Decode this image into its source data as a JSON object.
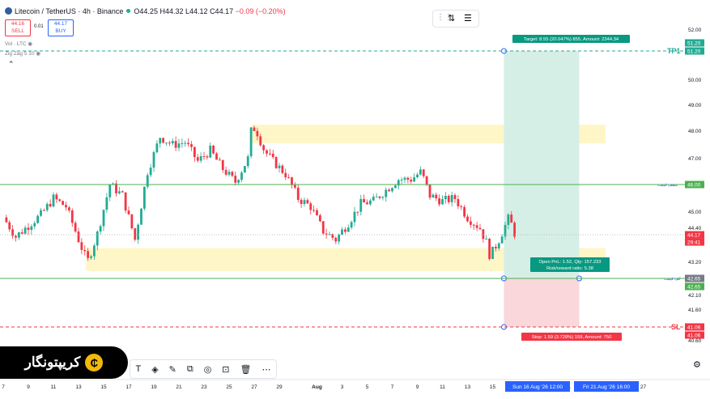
{
  "header": {
    "symbol": "Litecoin / TetherUS · 4h · Binance",
    "open": "O44.25",
    "high": "H44.32",
    "low": "L44.12",
    "close": "C44.17",
    "change": "−0.09 (−0.20%)"
  },
  "trade": {
    "sell_price": "44.16",
    "sell_label": "SELL",
    "spread": "0.01",
    "buy_price": "44.17",
    "buy_label": "BUY"
  },
  "indicators": {
    "vol": "Vol · LTC",
    "zigzag": "Zig Zag 5 10"
  },
  "logo": {
    "text": "کریپتونگار",
    "symbol": "₵"
  },
  "position": {
    "target_label": "Target: 8.55 (20.047%) 855, Amount: 2344.34",
    "open_label_1": "Open PnL: 1.52, Qty: 157.233",
    "open_label_2": "Risk/reward ratio: 5.38",
    "stop_label": "Stop: 1.59 (3.728%) 159, Amount: 750"
  },
  "line_labels": {
    "tp1": "TP1",
    "sl": "SL",
    "resist": "سقف قیمت",
    "support": "کف قیمت"
  },
  "colors": {
    "up": "#22ab94",
    "down": "#f23645",
    "green_line": "#4caf50",
    "target_fill": "#d6efe6",
    "stop_fill": "#f9d7da",
    "zone": "#fff6c8"
  },
  "chart_data": {
    "type": "candlestick",
    "title": "Litecoin / TetherUS · 4h · Binance",
    "y_ticks": [
      52.0,
      51.2,
      50.0,
      49.0,
      48.0,
      47.0,
      46.0,
      45.0,
      44.4,
      43.2,
      42.65,
      42.1,
      41.6,
      41.06,
      40.6
    ],
    "y_tick_labels": [
      "52.00",
      "51.20",
      "50.00",
      "49.00",
      "48.00",
      "47.00",
      "46.00",
      "45.00",
      "44.40",
      "43.20",
      "42.65",
      "42.10",
      "41.60",
      "41.06",
      "40.60"
    ],
    "x_ticks": [
      {
        "label": "7",
        "day": 0
      },
      {
        "label": "9",
        "day": 2
      },
      {
        "label": "11",
        "day": 4
      },
      {
        "label": "13",
        "day": 6
      },
      {
        "label": "15",
        "day": 8
      },
      {
        "label": "17",
        "day": 10
      },
      {
        "label": "19",
        "day": 12
      },
      {
        "label": "21",
        "day": 14
      },
      {
        "label": "23",
        "day": 16
      },
      {
        "label": "25",
        "day": 18
      },
      {
        "label": "27",
        "day": 20
      },
      {
        "label": "29",
        "day": 22
      },
      {
        "label": "Aug",
        "day": 25
      },
      {
        "label": "3",
        "day": 27
      },
      {
        "label": "5",
        "day": 29
      },
      {
        "label": "7",
        "day": 31
      },
      {
        "label": "9",
        "day": 33
      },
      {
        "label": "11",
        "day": 35
      },
      {
        "label": "13",
        "day": 37
      },
      {
        "label": "15",
        "day": 39
      },
      {
        "label": "17",
        "day": 41
      },
      {
        "label": "19",
        "day": 43
      },
      {
        "label": "21",
        "day": 45
      },
      {
        "label": "23",
        "day": 47
      },
      {
        "label": "25",
        "day": 49
      },
      {
        "label": "27",
        "day": 51
      }
    ],
    "x_highlight": [
      "Sun 16 Aug '26   12:00",
      "Fri 21 Aug '26   16:00"
    ],
    "price_labels": {
      "tp1": "51.20",
      "resist": "46.00",
      "last": "44.17",
      "countdown": "29:41",
      "support": "42.65",
      "sl": "41.06"
    },
    "levels": {
      "tp1": 51.2,
      "resistance": 46.0,
      "support": 42.65,
      "sl": 41.06,
      "last": 44.17
    },
    "zones": [
      {
        "from_day": 19.8,
        "to_day": 48,
        "low": 47.55,
        "high": 48.25
      },
      {
        "from_day": 6.6,
        "to_day": 48,
        "low": 42.9,
        "high": 43.7
      }
    ],
    "position_days": [
      39.9,
      45.9
    ],
    "path": [
      [
        0,
        44.8
      ],
      [
        1,
        44.1
      ],
      [
        2,
        44.5
      ],
      [
        3,
        44.9
      ],
      [
        4,
        45.5
      ],
      [
        5,
        45.2
      ],
      [
        6,
        44.0
      ],
      [
        6.7,
        43.2
      ],
      [
        7.5,
        44.2
      ],
      [
        8.5,
        46.0
      ],
      [
        9.5,
        45.6
      ],
      [
        10.5,
        44.0
      ],
      [
        11.5,
        46.5
      ],
      [
        12.5,
        47.8
      ],
      [
        13.5,
        47.5
      ],
      [
        14.5,
        47.6
      ],
      [
        15.5,
        46.9
      ],
      [
        16.5,
        47.3
      ],
      [
        17.5,
        46.6
      ],
      [
        18.5,
        46.1
      ],
      [
        19.5,
        47.0
      ],
      [
        19.8,
        48.2
      ],
      [
        20.2,
        48.0
      ],
      [
        20.8,
        47.3
      ],
      [
        21.5,
        46.9
      ],
      [
        22.5,
        46.4
      ],
      [
        23.5,
        45.5
      ],
      [
        24.5,
        45.2
      ],
      [
        25.5,
        44.3
      ],
      [
        26.5,
        44.0
      ],
      [
        27.5,
        44.6
      ],
      [
        28.5,
        45.3
      ],
      [
        29.5,
        45.4
      ],
      [
        30.5,
        45.8
      ],
      [
        31.5,
        46.2
      ],
      [
        32.5,
        46.2
      ],
      [
        33.3,
        46.5
      ],
      [
        34,
        45.6
      ],
      [
        35,
        45.4
      ],
      [
        36,
        45.5
      ],
      [
        37,
        44.8
      ],
      [
        38,
        44.4
      ],
      [
        38.5,
        43.9
      ],
      [
        38.8,
        43.4
      ],
      [
        39.5,
        44.0
      ],
      [
        40.3,
        44.8
      ],
      [
        40.8,
        44.17
      ]
    ]
  }
}
